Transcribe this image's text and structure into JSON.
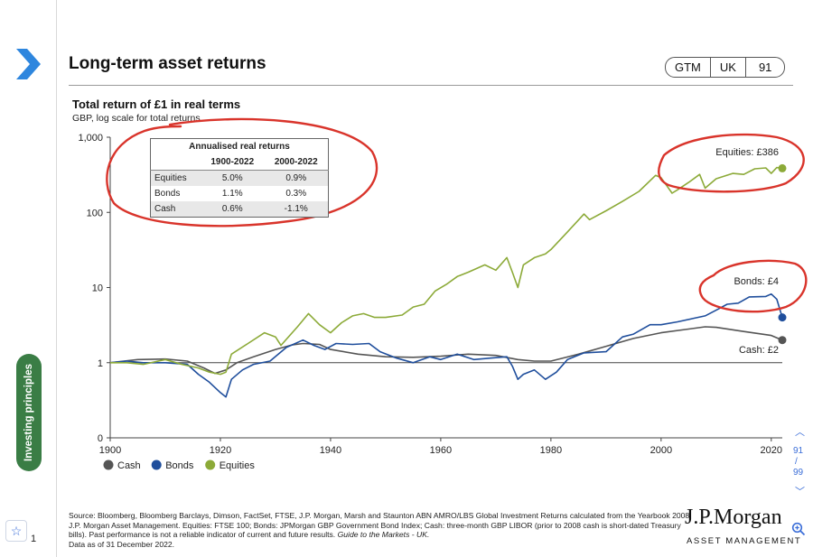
{
  "page": {
    "title": "Long-term asset returns",
    "gtm_badge": [
      "GTM",
      "UK",
      "91"
    ],
    "side_tab_label": "Investing principles",
    "left_page_number": "1",
    "nav": {
      "current": "91",
      "total": "99"
    },
    "source_text": "Source: Bloomberg, Bloomberg Barclays, Dimson, FactSet, FTSE, J.P. Morgan, Marsh and Staunton ABN AMRO/LBS Global Investment Returns calculated from the Yearbook 2008, J.P. Morgan Asset Management. Equities: FTSE 100; Bonds: JPMorgan GBP Government Bond Index; Cash: three-month GBP LIBOR (prior to 2008 cash is short-dated Treasury bills). Past performance is not a reliable indicator of current and future results.",
    "source_italic": "Guide to the Markets - UK.",
    "data_as_of": "Data as of 31 December 2022.",
    "logo_main": "J.P.Morgan",
    "logo_sub": "ASSET MANAGEMENT",
    "icons": [
      "chevron-right-icon",
      "star-icon",
      "chevron-up-icon",
      "chevron-down-icon",
      "zoom-in-icon"
    ]
  },
  "chart_data": {
    "type": "line",
    "title": "Total return of £1 in real terms",
    "subtitle": "GBP, log scale for total returns",
    "x_ticks": [
      1900,
      1920,
      1940,
      1960,
      1980,
      2000,
      2020
    ],
    "y_ticks": [
      {
        "label": "0",
        "value": 0.1
      },
      {
        "label": "1",
        "value": 1
      },
      {
        "label": "10",
        "value": 10
      },
      {
        "label": "100",
        "value": 100
      },
      {
        "label": "1,000",
        "value": 1000
      }
    ],
    "y_scale": "log",
    "xlim": [
      1900,
      2022
    ],
    "ylim": [
      0.1,
      1000
    ],
    "legend_position": "bottom-left",
    "series": [
      {
        "name": "Cash",
        "color": "#555555",
        "end_label": "Cash: £2",
        "points": [
          [
            1900,
            1.0
          ],
          [
            1905,
            1.1
          ],
          [
            1910,
            1.12
          ],
          [
            1914,
            1.05
          ],
          [
            1917,
            0.85
          ],
          [
            1919,
            0.72
          ],
          [
            1921,
            0.8
          ],
          [
            1923,
            1.0
          ],
          [
            1926,
            1.2
          ],
          [
            1930,
            1.5
          ],
          [
            1933,
            1.72
          ],
          [
            1935,
            1.8
          ],
          [
            1938,
            1.75
          ],
          [
            1940,
            1.5
          ],
          [
            1945,
            1.3
          ],
          [
            1950,
            1.2
          ],
          [
            1955,
            1.18
          ],
          [
            1960,
            1.22
          ],
          [
            1965,
            1.3
          ],
          [
            1970,
            1.25
          ],
          [
            1974,
            1.1
          ],
          [
            1977,
            1.05
          ],
          [
            1980,
            1.05
          ],
          [
            1985,
            1.3
          ],
          [
            1990,
            1.65
          ],
          [
            1995,
            2.1
          ],
          [
            2000,
            2.5
          ],
          [
            2005,
            2.8
          ],
          [
            2008,
            3.0
          ],
          [
            2010,
            2.95
          ],
          [
            2015,
            2.6
          ],
          [
            2020,
            2.3
          ],
          [
            2022,
            2.0
          ]
        ]
      },
      {
        "name": "Bonds",
        "color": "#1f4e9c",
        "end_label": "Bonds: £4",
        "points": [
          [
            1900,
            1.0
          ],
          [
            1903,
            1.05
          ],
          [
            1906,
            1.0
          ],
          [
            1910,
            1.0
          ],
          [
            1914,
            0.95
          ],
          [
            1916,
            0.7
          ],
          [
            1918,
            0.55
          ],
          [
            1920,
            0.4
          ],
          [
            1921,
            0.35
          ],
          [
            1922,
            0.6
          ],
          [
            1924,
            0.8
          ],
          [
            1926,
            0.95
          ],
          [
            1929,
            1.05
          ],
          [
            1932,
            1.6
          ],
          [
            1935,
            2.0
          ],
          [
            1937,
            1.7
          ],
          [
            1939,
            1.5
          ],
          [
            1941,
            1.8
          ],
          [
            1944,
            1.75
          ],
          [
            1947,
            1.8
          ],
          [
            1949,
            1.4
          ],
          [
            1952,
            1.15
          ],
          [
            1955,
            1.0
          ],
          [
            1958,
            1.2
          ],
          [
            1960,
            1.1
          ],
          [
            1963,
            1.3
          ],
          [
            1966,
            1.1
          ],
          [
            1969,
            1.15
          ],
          [
            1972,
            1.2
          ],
          [
            1973,
            0.9
          ],
          [
            1974,
            0.6
          ],
          [
            1975,
            0.7
          ],
          [
            1977,
            0.8
          ],
          [
            1979,
            0.6
          ],
          [
            1981,
            0.75
          ],
          [
            1983,
            1.1
          ],
          [
            1986,
            1.35
          ],
          [
            1990,
            1.4
          ],
          [
            1993,
            2.2
          ],
          [
            1995,
            2.4
          ],
          [
            1998,
            3.2
          ],
          [
            2000,
            3.2
          ],
          [
            2003,
            3.5
          ],
          [
            2006,
            3.9
          ],
          [
            2008,
            4.2
          ],
          [
            2010,
            5.0
          ],
          [
            2012,
            6.0
          ],
          [
            2014,
            6.2
          ],
          [
            2016,
            7.5
          ],
          [
            2019,
            7.6
          ],
          [
            2020,
            8.2
          ],
          [
            2021,
            7.0
          ],
          [
            2022,
            4.0
          ]
        ]
      },
      {
        "name": "Equities",
        "color": "#8caa38",
        "end_label": "Equities: £386",
        "points": [
          [
            1900,
            1.0
          ],
          [
            1903,
            1.0
          ],
          [
            1906,
            0.95
          ],
          [
            1910,
            1.1
          ],
          [
            1913,
            0.95
          ],
          [
            1916,
            0.85
          ],
          [
            1918,
            0.75
          ],
          [
            1920,
            0.7
          ],
          [
            1921,
            0.75
          ],
          [
            1922,
            1.3
          ],
          [
            1925,
            1.8
          ],
          [
            1928,
            2.5
          ],
          [
            1930,
            2.2
          ],
          [
            1931,
            1.7
          ],
          [
            1934,
            3.0
          ],
          [
            1936,
            4.5
          ],
          [
            1938,
            3.2
          ],
          [
            1940,
            2.5
          ],
          [
            1942,
            3.4
          ],
          [
            1944,
            4.2
          ],
          [
            1946,
            4.5
          ],
          [
            1948,
            4.0
          ],
          [
            1950,
            4.0
          ],
          [
            1953,
            4.3
          ],
          [
            1955,
            5.5
          ],
          [
            1957,
            6.0
          ],
          [
            1959,
            9.0
          ],
          [
            1961,
            11.0
          ],
          [
            1963,
            14.0
          ],
          [
            1965,
            16.0
          ],
          [
            1968,
            20.0
          ],
          [
            1970,
            17.0
          ],
          [
            1972,
            25.0
          ],
          [
            1973,
            16.0
          ],
          [
            1974,
            10.0
          ],
          [
            1975,
            20.0
          ],
          [
            1977,
            25.0
          ],
          [
            1979,
            28.0
          ],
          [
            1980,
            32.0
          ],
          [
            1983,
            55.0
          ],
          [
            1986,
            95.0
          ],
          [
            1987,
            80.0
          ],
          [
            1990,
            105.0
          ],
          [
            1993,
            140.0
          ],
          [
            1996,
            190.0
          ],
          [
            1999,
            310.0
          ],
          [
            2000,
            290.0
          ],
          [
            2002,
            180.0
          ],
          [
            2003,
            200.0
          ],
          [
            2005,
            250.0
          ],
          [
            2007,
            320.0
          ],
          [
            2008,
            210.0
          ],
          [
            2010,
            280.0
          ],
          [
            2013,
            330.0
          ],
          [
            2015,
            320.0
          ],
          [
            2017,
            380.0
          ],
          [
            2019,
            390.0
          ],
          [
            2020,
            330.0
          ],
          [
            2021,
            395.0
          ],
          [
            2022,
            386.0
          ]
        ]
      }
    ],
    "table": {
      "title": "Annualised real returns",
      "columns": [
        "",
        "1900-2022",
        "2000-2022"
      ],
      "rows": [
        [
          "Equities",
          "5.0%",
          "0.9%"
        ],
        [
          "Bonds",
          "1.1%",
          "0.3%"
        ],
        [
          "Cash",
          "0.6%",
          "-1.1%"
        ]
      ]
    }
  }
}
